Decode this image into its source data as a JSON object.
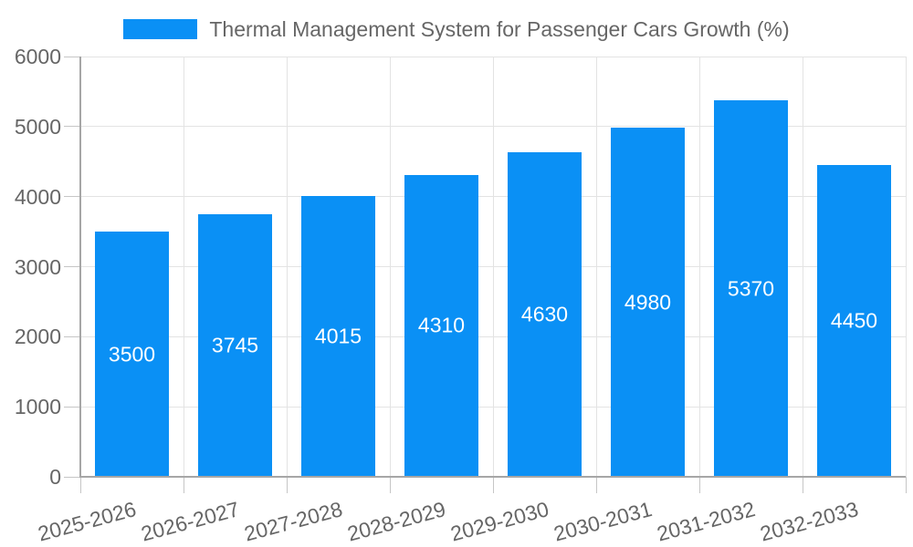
{
  "chart_data": {
    "type": "bar",
    "title": "",
    "legend_label": "Thermal Management System for Passenger Cars Growth (%)",
    "legend_position": "top",
    "categories": [
      "2025-2026",
      "2026-2027",
      "2027-2028",
      "2028-2029",
      "2029-2030",
      "2030-2031",
      "2031-2032",
      "2032-2033"
    ],
    "values": [
      3500,
      3745,
      4015,
      4310,
      4630,
      4980,
      5370,
      4450
    ],
    "xlabel": "",
    "ylabel": "",
    "ylim": [
      0,
      6000
    ],
    "yticks": [
      0,
      1000,
      2000,
      3000,
      4000,
      5000,
      6000
    ],
    "grid": true,
    "x_label_rotation_deg": -15,
    "colors": {
      "bar": "#0a90f5",
      "value_label": "#ffffff",
      "axis_text": "#666666",
      "grid_line": "#e3e3e3",
      "tick_line": "#c6c6c6",
      "axis_line": "#a6a6a6",
      "background": "#ffffff"
    }
  }
}
